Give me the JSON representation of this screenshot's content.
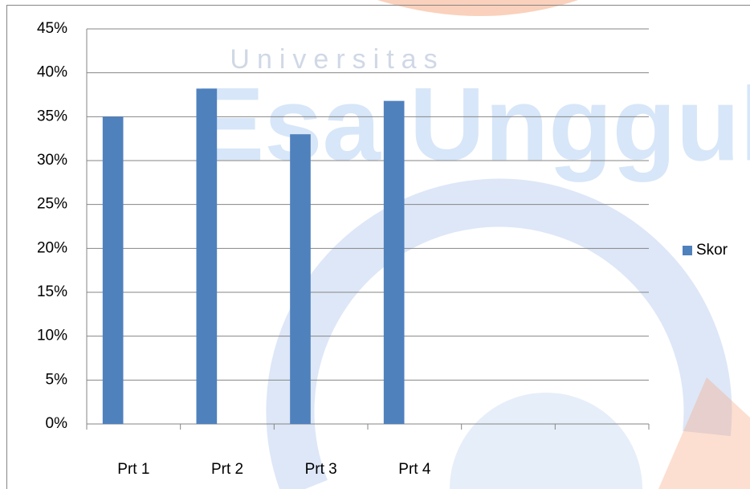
{
  "chart_data": {
    "type": "bar",
    "watermark": [
      "Universitas",
      "Esa Unggul"
    ],
    "categories": [
      "Prt 1",
      "Prt 2",
      "Prt 3",
      "Prt 4",
      null,
      null
    ],
    "series": [
      {
        "name": "Skor",
        "color": "#4f81bd",
        "values": [
          35,
          38.2,
          33,
          36.8,
          null,
          null
        ]
      }
    ],
    "ylim": [
      0,
      45
    ],
    "yticks": [
      {
        "value": 0,
        "label": "0%"
      },
      {
        "value": 5,
        "label": "5%"
      },
      {
        "value": 10,
        "label": "10%"
      },
      {
        "value": 15,
        "label": "15%"
      },
      {
        "value": 20,
        "label": "20%"
      },
      {
        "value": 25,
        "label": "25%"
      },
      {
        "value": 30,
        "label": "30%"
      },
      {
        "value": 35,
        "label": "35%"
      },
      {
        "value": 40,
        "label": "40%"
      },
      {
        "value": 45,
        "label": "45%"
      }
    ],
    "grid": true,
    "legend": "right"
  }
}
